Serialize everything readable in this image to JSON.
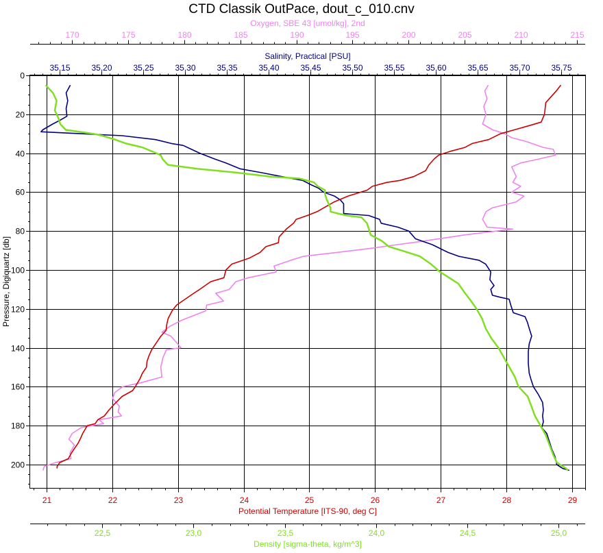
{
  "chart_data": {
    "type": "line",
    "title": "CTD Classik OutPace, dout_c_010.cnv",
    "grid": true,
    "y_axis": {
      "label": "Pressure, Digiquartz [db]",
      "range": [
        0,
        212
      ],
      "inverted": true,
      "ticks": [
        0,
        20,
        40,
        60,
        80,
        100,
        120,
        140,
        160,
        180,
        200
      ],
      "tick_labels": [
        "0",
        "20",
        "40",
        "60",
        "80",
        "100",
        "120",
        "140",
        "160",
        "180",
        "200"
      ]
    },
    "x_axes": [
      {
        "id": "oxygen",
        "label": "Oxygen, SBE 43 [umol/kg], 2nd",
        "position": "top-outer",
        "color": "#ee82ee",
        "range": [
          166.25,
          215.75
        ],
        "ticks": [
          170,
          175,
          180,
          185,
          190,
          195,
          200,
          205,
          210,
          215
        ],
        "tick_labels": [
          "170",
          "175",
          "180",
          "185",
          "190",
          "195",
          "200",
          "205",
          "210",
          "215"
        ]
      },
      {
        "id": "salinity",
        "label": "Salinity, Practical [PSU]",
        "position": "top-inner",
        "color": "#000080",
        "range": [
          35.115,
          35.779
        ],
        "ticks": [
          35.15,
          35.2,
          35.25,
          35.3,
          35.35,
          35.4,
          35.45,
          35.5,
          35.55,
          35.6,
          35.65,
          35.7,
          35.75
        ],
        "tick_labels": [
          "35,15",
          "35,20",
          "35,25",
          "35,30",
          "35,35",
          "35,40",
          "35,45",
          "35,50",
          "35,55",
          "35,60",
          "35,65",
          "35,70",
          "35,75"
        ]
      },
      {
        "id": "temperature",
        "label": "Potential Temperature [ITS-90, deg C]",
        "position": "bottom-inner",
        "color": "#cc0000",
        "range": [
          20.75,
          29.2
        ],
        "ticks": [
          21,
          22,
          23,
          24,
          25,
          26,
          27,
          28,
          29
        ],
        "tick_labels": [
          "21",
          "22",
          "23",
          "24",
          "25",
          "26",
          "27",
          "28",
          "29"
        ]
      },
      {
        "id": "density",
        "label": "Density [sigma-theta, kg/m^3]",
        "position": "bottom-outer",
        "color": "#7fe020",
        "range": [
          22.105,
          25.145
        ],
        "ticks": [
          22.5,
          23.0,
          23.5,
          24.0,
          24.5,
          25.0
        ],
        "tick_labels": [
          "22,5",
          "23,0",
          "23,5",
          "24,0",
          "24,5",
          "25,0"
        ]
      }
    ],
    "series": [
      {
        "axis": "oxygen",
        "color": "#ee82ee",
        "points": [
          [
            207.1,
            5
          ],
          [
            206.8,
            8
          ],
          [
            207.0,
            12
          ],
          [
            206.7,
            16
          ],
          [
            206.9,
            20
          ],
          [
            206.6,
            25
          ],
          [
            207.5,
            28
          ],
          [
            208.6,
            30
          ],
          [
            209.2,
            32
          ],
          [
            210.5,
            34
          ],
          [
            212.0,
            37
          ],
          [
            212.9,
            38
          ],
          [
            213.1,
            41
          ],
          [
            211.6,
            43
          ],
          [
            210.0,
            45
          ],
          [
            209.2,
            47
          ],
          [
            209.6,
            52
          ],
          [
            209.3,
            55
          ],
          [
            210.0,
            57
          ],
          [
            209.2,
            60
          ],
          [
            210.3,
            62
          ],
          [
            209.6,
            65
          ],
          [
            207.5,
            68
          ],
          [
            206.9,
            70
          ],
          [
            206.6,
            74
          ],
          [
            207.0,
            78
          ],
          [
            209.3,
            79
          ],
          [
            205.0,
            82
          ],
          [
            201.5,
            85
          ],
          [
            199.0,
            87
          ],
          [
            196.5,
            89
          ],
          [
            193.6,
            91
          ],
          [
            190.6,
            93
          ],
          [
            189.5,
            95
          ],
          [
            188.0,
            98
          ],
          [
            188.2,
            101
          ],
          [
            185.7,
            104
          ],
          [
            184.6,
            106
          ],
          [
            184.0,
            110
          ],
          [
            182.8,
            112
          ],
          [
            183.5,
            116
          ],
          [
            182.0,
            118
          ],
          [
            181.9,
            121
          ],
          [
            179.7,
            126
          ],
          [
            178.7,
            129
          ],
          [
            178.0,
            132
          ],
          [
            178.8,
            134
          ],
          [
            179.7,
            140
          ],
          [
            178.4,
            141
          ],
          [
            178.1,
            145
          ],
          [
            177.9,
            150
          ],
          [
            178.0,
            155
          ],
          [
            176.1,
            158
          ],
          [
            174.5,
            160
          ],
          [
            173.8,
            163
          ],
          [
            173.6,
            166
          ],
          [
            174.2,
            170
          ],
          [
            174.1,
            173
          ],
          [
            174.4,
            175
          ],
          [
            172.4,
            177
          ],
          [
            172.8,
            179
          ],
          [
            170.8,
            181
          ],
          [
            170.0,
            184
          ],
          [
            169.7,
            187
          ],
          [
            170.2,
            190
          ],
          [
            169.8,
            194
          ],
          [
            169.9,
            197
          ],
          [
            168.5,
            199
          ],
          [
            167.5,
            201
          ],
          [
            167.4,
            203
          ]
        ]
      },
      {
        "axis": "salinity",
        "color": "#000080",
        "points": [
          [
            35.163,
            5
          ],
          [
            35.158,
            9
          ],
          [
            35.16,
            13
          ],
          [
            35.158,
            17
          ],
          [
            35.159,
            21
          ],
          [
            35.151,
            23
          ],
          [
            35.142,
            25
          ],
          [
            35.13,
            28
          ],
          [
            35.128,
            29
          ],
          [
            35.225,
            31
          ],
          [
            35.265,
            33
          ],
          [
            35.284,
            35
          ],
          [
            35.298,
            36
          ],
          [
            35.308,
            38
          ],
          [
            35.318,
            40
          ],
          [
            35.336,
            43
          ],
          [
            35.349,
            45
          ],
          [
            35.366,
            48
          ],
          [
            35.392,
            50
          ],
          [
            35.416,
            52
          ],
          [
            35.441,
            54
          ],
          [
            35.45,
            56
          ],
          [
            35.46,
            58
          ],
          [
            35.466,
            60
          ],
          [
            35.479,
            62
          ],
          [
            35.486,
            64
          ],
          [
            35.49,
            66
          ],
          [
            35.49,
            71
          ],
          [
            35.52,
            72
          ],
          [
            35.533,
            74
          ],
          [
            35.535,
            76
          ],
          [
            35.555,
            78
          ],
          [
            35.568,
            80
          ],
          [
            35.576,
            84
          ],
          [
            35.596,
            87
          ],
          [
            35.615,
            91
          ],
          [
            35.628,
            93
          ],
          [
            35.652,
            95
          ],
          [
            35.66,
            97
          ],
          [
            35.666,
            101
          ],
          [
            35.665,
            105
          ],
          [
            35.67,
            108
          ],
          [
            35.666,
            110
          ],
          [
            35.668,
            113
          ],
          [
            35.677,
            114
          ],
          [
            35.688,
            115
          ],
          [
            35.69,
            118
          ],
          [
            35.693,
            122
          ],
          [
            35.707,
            124
          ],
          [
            35.71,
            127
          ],
          [
            35.712,
            130
          ],
          [
            35.715,
            134
          ],
          [
            35.712,
            138
          ],
          [
            35.711,
            142
          ],
          [
            35.711,
            148
          ],
          [
            35.712,
            153
          ],
          [
            35.714,
            156
          ],
          [
            35.717,
            160
          ],
          [
            35.723,
            164
          ],
          [
            35.728,
            168
          ],
          [
            35.729,
            172
          ],
          [
            35.728,
            175
          ],
          [
            35.729,
            178
          ],
          [
            35.727,
            181
          ],
          [
            35.733,
            184
          ],
          [
            35.736,
            188
          ],
          [
            35.739,
            192
          ],
          [
            35.743,
            196
          ],
          [
            35.745,
            200
          ],
          [
            35.752,
            202
          ],
          [
            35.76,
            203
          ]
        ]
      },
      {
        "axis": "temperature",
        "color": "#cc0000",
        "points": [
          [
            28.83,
            5
          ],
          [
            28.76,
            8
          ],
          [
            28.6,
            14
          ],
          [
            28.58,
            20
          ],
          [
            28.53,
            24
          ],
          [
            28.33,
            26
          ],
          [
            28.12,
            28
          ],
          [
            27.91,
            30
          ],
          [
            27.73,
            33
          ],
          [
            27.48,
            35
          ],
          [
            27.37,
            37
          ],
          [
            27.15,
            39
          ],
          [
            26.97,
            41
          ],
          [
            26.9,
            43
          ],
          [
            26.82,
            46
          ],
          [
            26.77,
            49
          ],
          [
            26.59,
            52
          ],
          [
            26.38,
            54
          ],
          [
            26.18,
            55
          ],
          [
            25.96,
            57
          ],
          [
            25.88,
            59
          ],
          [
            25.59,
            62
          ],
          [
            25.38,
            65
          ],
          [
            25.12,
            70
          ],
          [
            24.97,
            72
          ],
          [
            24.8,
            74
          ],
          [
            24.76,
            76
          ],
          [
            24.65,
            79
          ],
          [
            24.54,
            83
          ],
          [
            24.53,
            86
          ],
          [
            24.34,
            88
          ],
          [
            24.25,
            91
          ],
          [
            24.08,
            94
          ],
          [
            23.82,
            97
          ],
          [
            23.73,
            100
          ],
          [
            23.7,
            104
          ],
          [
            23.5,
            106
          ],
          [
            23.33,
            110
          ],
          [
            23.24,
            112
          ],
          [
            23.11,
            115
          ],
          [
            22.98,
            118
          ],
          [
            22.91,
            121
          ],
          [
            22.85,
            125
          ],
          [
            22.83,
            128
          ],
          [
            22.82,
            131
          ],
          [
            22.74,
            134
          ],
          [
            22.7,
            136
          ],
          [
            22.64,
            139
          ],
          [
            22.6,
            141
          ],
          [
            22.56,
            144
          ],
          [
            22.53,
            147
          ],
          [
            22.52,
            150
          ],
          [
            22.46,
            153
          ],
          [
            22.42,
            156
          ],
          [
            22.35,
            160
          ],
          [
            22.31,
            162
          ],
          [
            22.15,
            165
          ],
          [
            22.03,
            169
          ],
          [
            21.95,
            172
          ],
          [
            21.88,
            175
          ],
          [
            21.78,
            177
          ],
          [
            21.74,
            179
          ],
          [
            21.62,
            180
          ],
          [
            21.55,
            184
          ],
          [
            21.51,
            187
          ],
          [
            21.48,
            189
          ],
          [
            21.42,
            192
          ],
          [
            21.38,
            194
          ],
          [
            21.33,
            197
          ],
          [
            21.2,
            199
          ],
          [
            21.16,
            201
          ],
          [
            21.16,
            202
          ]
        ]
      },
      {
        "axis": "density",
        "color": "#7fe020",
        "points": [
          [
            22.19,
            5
          ],
          [
            22.23,
            9
          ],
          [
            22.25,
            13
          ],
          [
            22.24,
            18
          ],
          [
            22.26,
            22
          ],
          [
            22.27,
            25
          ],
          [
            22.3,
            28
          ],
          [
            22.45,
            30
          ],
          [
            22.5,
            31
          ],
          [
            22.57,
            33
          ],
          [
            22.63,
            35
          ],
          [
            22.72,
            37
          ],
          [
            22.77,
            39
          ],
          [
            22.82,
            41
          ],
          [
            22.83,
            43
          ],
          [
            22.86,
            46
          ],
          [
            23.02,
            48
          ],
          [
            23.24,
            50
          ],
          [
            23.42,
            52
          ],
          [
            23.58,
            53
          ],
          [
            23.66,
            55
          ],
          [
            23.68,
            57
          ],
          [
            23.72,
            59
          ],
          [
            23.72,
            61
          ],
          [
            23.73,
            64
          ],
          [
            23.75,
            68
          ],
          [
            23.75,
            70
          ],
          [
            23.79,
            71
          ],
          [
            23.84,
            72
          ],
          [
            23.92,
            73
          ],
          [
            23.95,
            76
          ],
          [
            23.96,
            79
          ],
          [
            23.97,
            82
          ],
          [
            24.03,
            85
          ],
          [
            24.07,
            88
          ],
          [
            24.14,
            90
          ],
          [
            24.24,
            93
          ],
          [
            24.3,
            97
          ],
          [
            24.35,
            101
          ],
          [
            24.4,
            104
          ],
          [
            24.45,
            107
          ],
          [
            24.48,
            111
          ],
          [
            24.52,
            116
          ],
          [
            24.55,
            120
          ],
          [
            24.58,
            125
          ],
          [
            24.6,
            130
          ],
          [
            24.63,
            135
          ],
          [
            24.67,
            140
          ],
          [
            24.7,
            145
          ],
          [
            24.73,
            150
          ],
          [
            24.76,
            155
          ],
          [
            24.78,
            160
          ],
          [
            24.83,
            165
          ],
          [
            24.85,
            170
          ],
          [
            24.87,
            175
          ],
          [
            24.9,
            180
          ],
          [
            24.93,
            185
          ],
          [
            24.95,
            190
          ],
          [
            24.97,
            195
          ],
          [
            24.99,
            199
          ],
          [
            25.04,
            202
          ],
          [
            25.05,
            203
          ]
        ]
      }
    ]
  }
}
